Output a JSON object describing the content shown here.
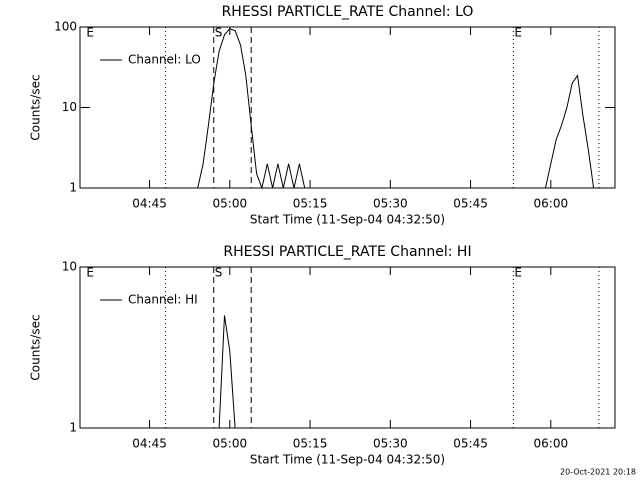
{
  "chart_data": [
    {
      "type": "line",
      "title": "RHESSI PARTICLE_RATE Channel: LO",
      "xlabel": "Start Time (11-Sep-04 04:32:50)",
      "ylabel": "Counts/sec",
      "x": [
        "04:54",
        "04:55",
        "04:56",
        "04:57",
        "04:58",
        "04:59",
        "05:00",
        "05:01",
        "05:02",
        "05:03",
        "05:04",
        "05:05",
        "05:06",
        "05:07",
        "05:08",
        "05:09",
        "05:10",
        "05:11",
        "05:12",
        "05:13",
        "05:14",
        "05:30",
        "05:59",
        "06:00",
        "06:01",
        "06:02",
        "06:03",
        "06:04",
        "06:05",
        "06:06",
        "06:07",
        "06:08"
      ],
      "series": [
        {
          "name": "Channel: LO",
          "color": "#000000",
          "values": [
            1,
            2,
            6,
            20,
            50,
            80,
            95,
            90,
            60,
            25,
            6,
            1.5,
            1,
            2,
            1,
            2,
            1,
            2,
            1,
            2,
            1,
            null,
            1,
            2,
            4,
            6,
            10,
            20,
            25,
            8,
            3,
            1
          ]
        }
      ],
      "xlim": [
        "04:32",
        "06:12"
      ],
      "xticks": [
        "04:45",
        "05:00",
        "05:15",
        "05:30",
        "05:45",
        "06:00"
      ],
      "ylim": [
        1,
        100
      ],
      "yticks": [
        1,
        10,
        100
      ],
      "log_y": true,
      "legend": "upper left",
      "events": [
        {
          "x": "04:48",
          "style": "dotted"
        },
        {
          "x": "04:57",
          "style": "dashed"
        },
        {
          "x": "05:04",
          "style": "dashed"
        },
        {
          "x": "05:53",
          "style": "dotted"
        },
        {
          "x": "06:09",
          "style": "dotted"
        }
      ],
      "event_labels": [
        {
          "text": "E",
          "x": "04:33"
        },
        {
          "text": "S",
          "x": "04:57"
        },
        {
          "text": "E",
          "x": "05:53"
        }
      ]
    },
    {
      "type": "line",
      "title": "RHESSI PARTICLE_RATE Channel: HI",
      "xlabel": "Start Time (11-Sep-04 04:32:50)",
      "ylabel": "Counts/sec",
      "x": [
        "04:58",
        "04:59",
        "05:00",
        "05:01"
      ],
      "series": [
        {
          "name": "Channel: HI",
          "color": "#000000",
          "values": [
            1,
            5,
            3,
            1
          ]
        }
      ],
      "xlim": [
        "04:32",
        "06:12"
      ],
      "xticks": [
        "04:45",
        "05:00",
        "05:15",
        "05:30",
        "05:45",
        "06:00"
      ],
      "ylim": [
        1,
        10
      ],
      "yticks": [
        1,
        10
      ],
      "log_y": true,
      "legend": "upper left",
      "events": [
        {
          "x": "04:48",
          "style": "dotted"
        },
        {
          "x": "04:57",
          "style": "dashed"
        },
        {
          "x": "05:04",
          "style": "dashed"
        },
        {
          "x": "05:53",
          "style": "dotted"
        },
        {
          "x": "06:09",
          "style": "dotted"
        }
      ],
      "event_labels": [
        {
          "text": "E",
          "x": "04:33"
        },
        {
          "text": "S",
          "x": "04:57"
        },
        {
          "text": "E",
          "x": "05:53"
        }
      ]
    }
  ],
  "footer": "20-Oct-2021 20:18"
}
